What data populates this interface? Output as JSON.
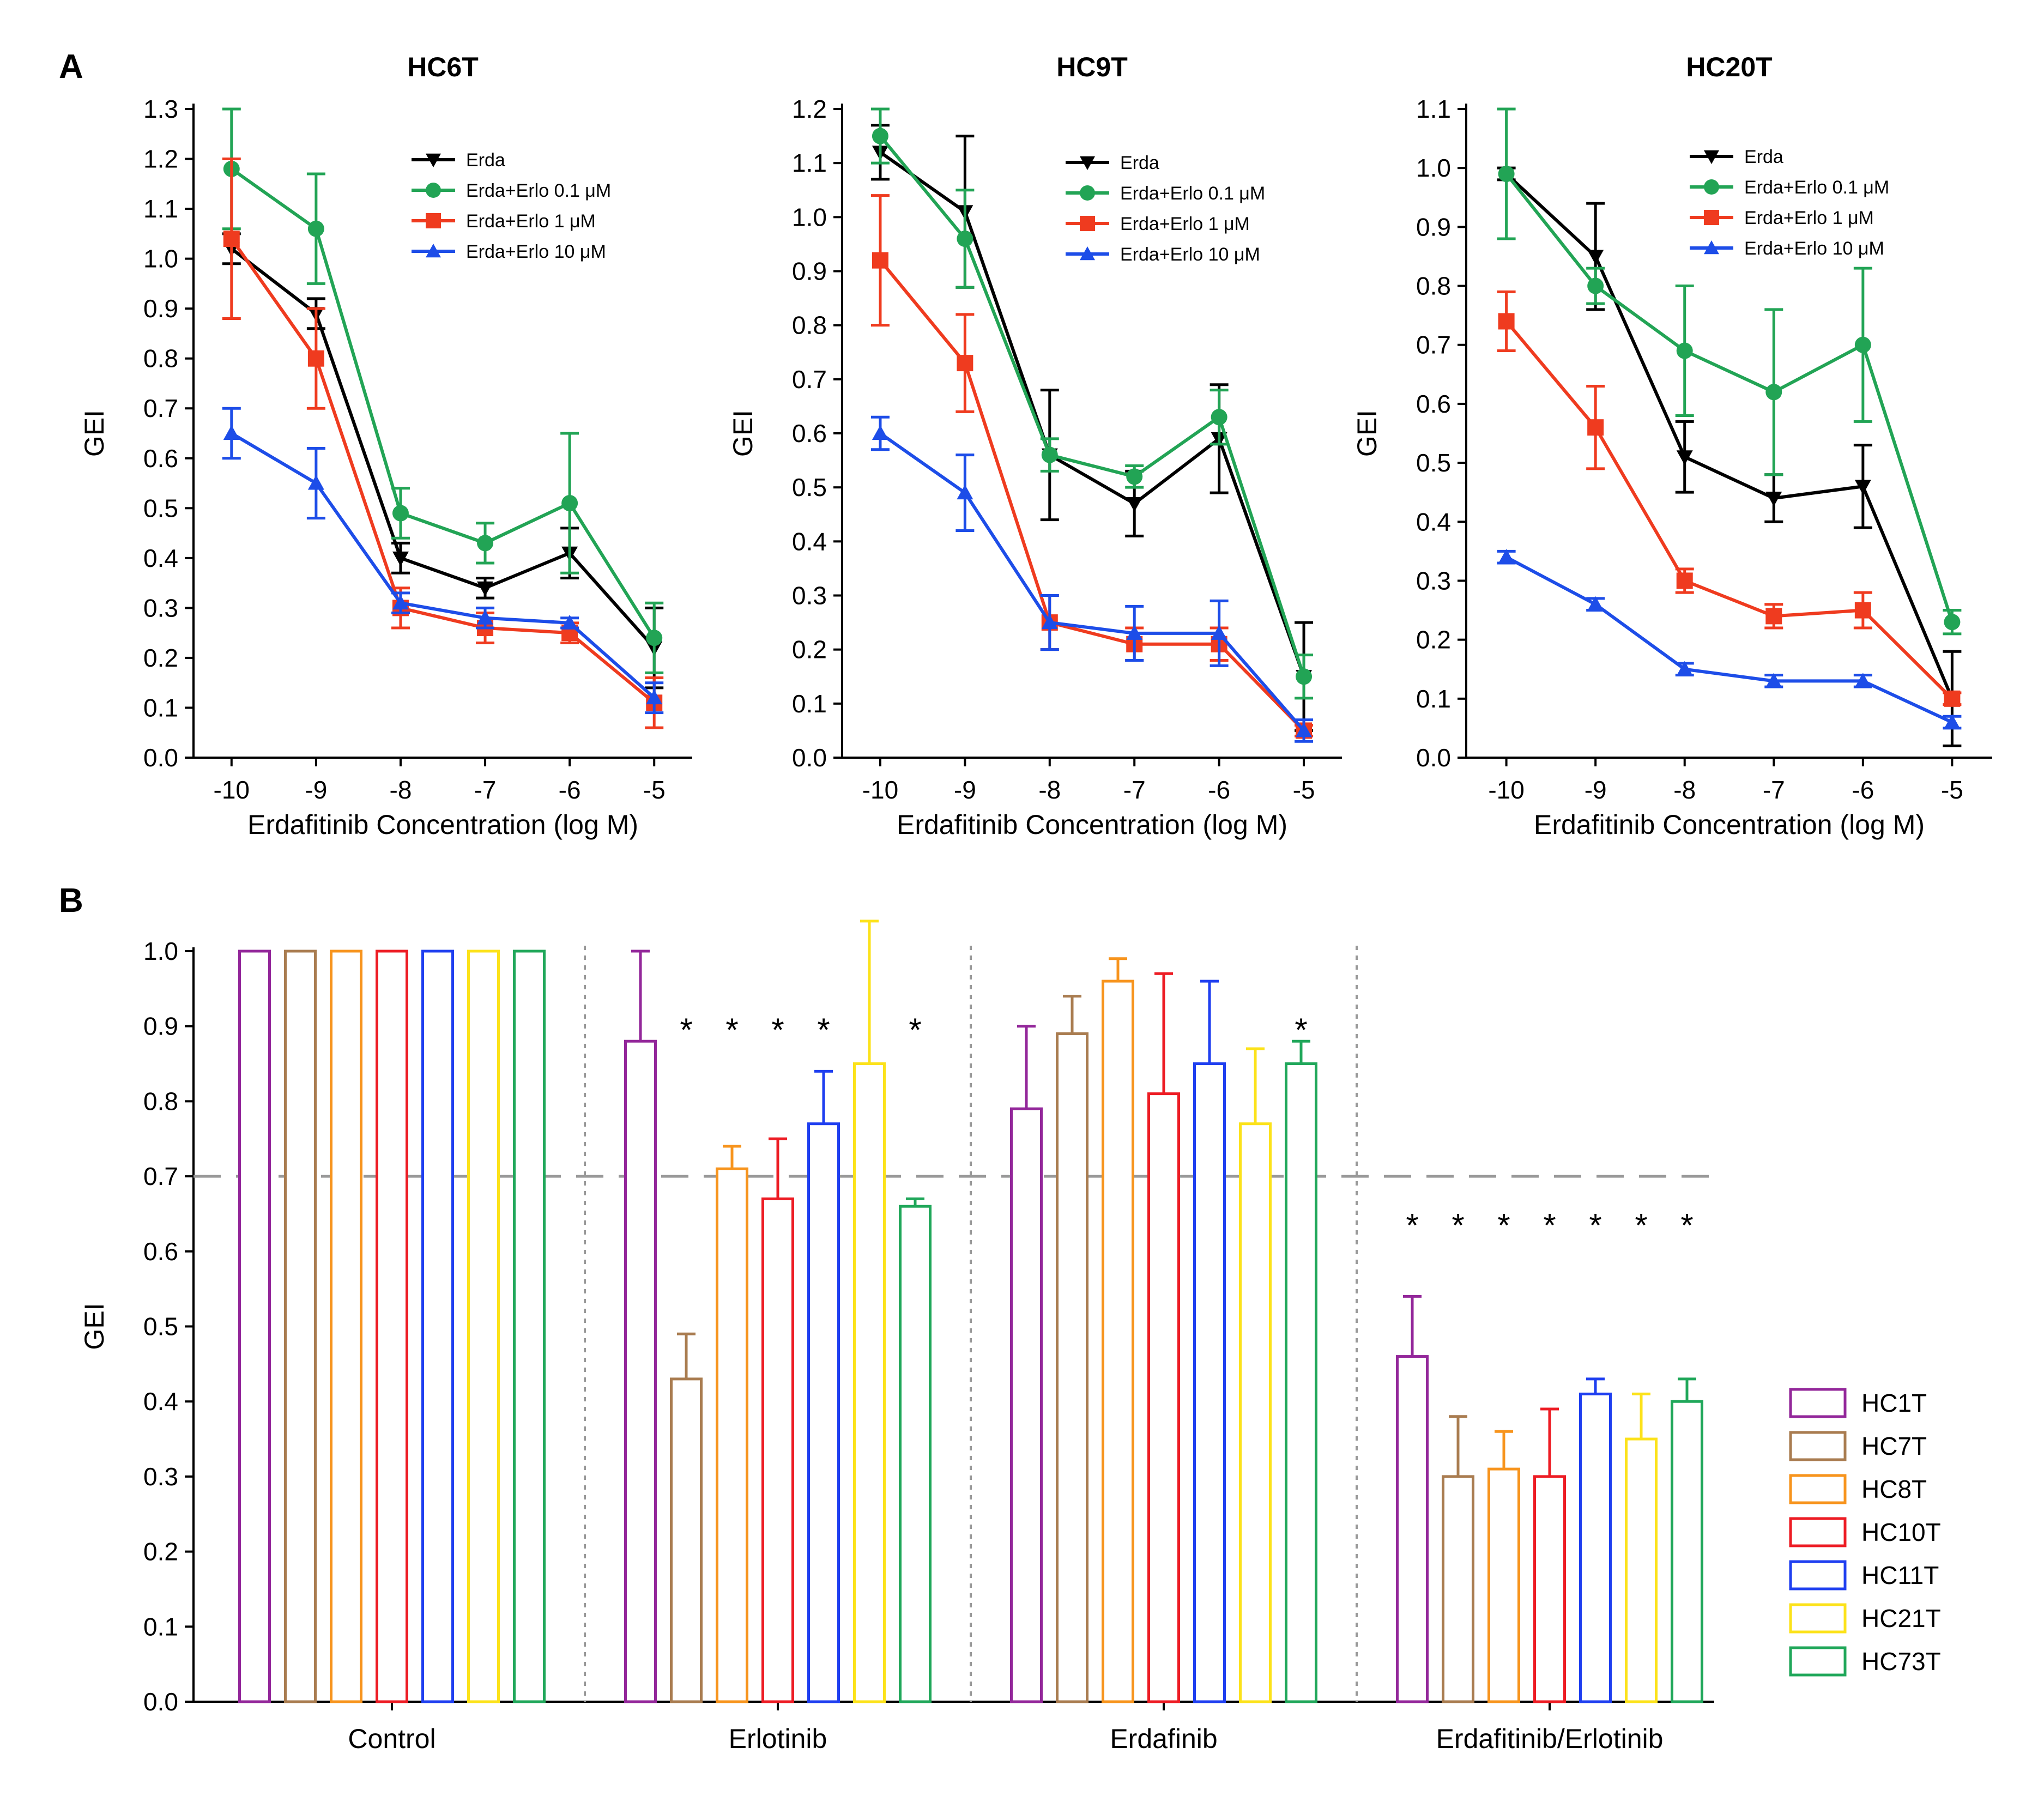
{
  "figure": {
    "panel_a_label": "A",
    "panel_b_label": "B"
  },
  "chart_data": [
    {
      "type": "line",
      "title": "HC6T",
      "xlabel": "Erdafitinib Concentration (log M)",
      "ylabel": "GEI",
      "x": [
        -10,
        -9,
        -8,
        -7,
        -6,
        -5
      ],
      "xlim": [
        -10.45,
        -4.55
      ],
      "ylim": [
        0,
        1.3
      ],
      "y_ticks": [
        "0.0",
        "0.1",
        "0.2",
        "0.3",
        "0.4",
        "0.5",
        "0.6",
        "0.7",
        "0.8",
        "0.9",
        "1.0",
        "1.1",
        "1.2",
        "1.3"
      ],
      "legend_position": "top-right",
      "series": [
        {
          "name": "Erda",
          "legend_label": "Erda",
          "color": "#000000",
          "marker": "triangle-down",
          "values": [
            1.02,
            0.89,
            0.4,
            0.34,
            0.41,
            0.22
          ],
          "errors": [
            0.03,
            0.03,
            0.03,
            0.02,
            0.05,
            0.08
          ]
        },
        {
          "name": "Erda+Erlo 0.1 μM",
          "legend_label": "Erda+Erlo 0.1 μM",
          "color": "#22a455",
          "marker": "circle",
          "values": [
            1.18,
            1.06,
            0.49,
            0.43,
            0.51,
            0.24
          ],
          "errors": [
            0.12,
            0.11,
            0.05,
            0.04,
            0.14,
            0.07
          ]
        },
        {
          "name": "Erda+Erlo 1 μM",
          "legend_label": "Erda+Erlo 1 μM",
          "color": "#ef3b1f",
          "marker": "square",
          "values": [
            1.04,
            0.8,
            0.3,
            0.26,
            0.25,
            0.11
          ],
          "errors": [
            0.16,
            0.1,
            0.04,
            0.03,
            0.02,
            0.05
          ]
        },
        {
          "name": "Erda+Erlo 10 μM",
          "legend_label": "Erda+Erlo 10 μM",
          "color": "#1d4de8",
          "marker": "triangle-up",
          "values": [
            0.65,
            0.55,
            0.31,
            0.28,
            0.27,
            0.12
          ],
          "errors": [
            0.05,
            0.07,
            0.02,
            0.02,
            0.01,
            0.03
          ]
        }
      ]
    },
    {
      "type": "line",
      "title": "HC9T",
      "xlabel": "Erdafitinib Concentration (log M)",
      "ylabel": "GEI",
      "x": [
        -10,
        -9,
        -8,
        -7,
        -6,
        -5
      ],
      "xlim": [
        -10.45,
        -4.55
      ],
      "ylim": [
        0,
        1.2
      ],
      "y_ticks": [
        "0.0",
        "0.1",
        "0.2",
        "0.3",
        "0.4",
        "0.5",
        "0.6",
        "0.7",
        "0.8",
        "0.9",
        "1.0",
        "1.1",
        "1.2"
      ],
      "legend_position": "top-right",
      "series": [
        {
          "name": "Erda",
          "legend_label": "Erda",
          "color": "#000000",
          "marker": "triangle-down",
          "values": [
            1.12,
            1.01,
            0.56,
            0.47,
            0.59,
            0.15
          ],
          "errors": [
            0.05,
            0.14,
            0.12,
            0.06,
            0.1,
            0.1
          ]
        },
        {
          "name": "Erda+Erlo 0.1 μM",
          "legend_label": "Erda+Erlo 0.1 μM",
          "color": "#22a455",
          "marker": "circle",
          "values": [
            1.15,
            0.96,
            0.56,
            0.52,
            0.63,
            0.15
          ],
          "errors": [
            0.05,
            0.09,
            0.03,
            0.02,
            0.05,
            0.04
          ]
        },
        {
          "name": "Erda+Erlo 1 μM",
          "legend_label": "Erda+Erlo 1 μM",
          "color": "#ef3b1f",
          "marker": "square",
          "values": [
            0.92,
            0.73,
            0.25,
            0.21,
            0.21,
            0.05
          ],
          "errors": [
            0.12,
            0.09,
            0.05,
            0.03,
            0.03,
            0.01
          ]
        },
        {
          "name": "Erda+Erlo 10 μM",
          "legend_label": "Erda+Erlo 10 μM",
          "color": "#1d4de8",
          "marker": "triangle-up",
          "values": [
            0.6,
            0.49,
            0.25,
            0.23,
            0.23,
            0.05
          ],
          "errors": [
            0.03,
            0.07,
            0.05,
            0.05,
            0.06,
            0.02
          ]
        }
      ]
    },
    {
      "type": "line",
      "title": "HC20T",
      "xlabel": "Erdafitinib Concentration (log M)",
      "ylabel": "GEI",
      "x": [
        -10,
        -9,
        -8,
        -7,
        -6,
        -5
      ],
      "xlim": [
        -10.45,
        -4.55
      ],
      "ylim": [
        0,
        1.1
      ],
      "y_ticks": [
        "0.0",
        "0.1",
        "0.2",
        "0.3",
        "0.4",
        "0.5",
        "0.6",
        "0.7",
        "0.8",
        "0.9",
        "1.0",
        "1.1"
      ],
      "legend_position": "top-right",
      "series": [
        {
          "name": "Erda",
          "legend_label": "Erda",
          "color": "#000000",
          "marker": "triangle-down",
          "values": [
            0.99,
            0.85,
            0.51,
            0.44,
            0.46,
            0.1
          ],
          "errors": [
            0.01,
            0.09,
            0.06,
            0.04,
            0.07,
            0.08
          ]
        },
        {
          "name": "Erda+Erlo 0.1 μM",
          "legend_label": "Erda+Erlo 0.1 μM",
          "color": "#22a455",
          "marker": "circle",
          "values": [
            0.99,
            0.8,
            0.69,
            0.62,
            0.7,
            0.23
          ],
          "errors": [
            0.11,
            0.03,
            0.11,
            0.14,
            0.13,
            0.02
          ]
        },
        {
          "name": "Erda+Erlo 1 μM",
          "legend_label": "Erda+Erlo 1 μM",
          "color": "#ef3b1f",
          "marker": "square",
          "values": [
            0.74,
            0.56,
            0.3,
            0.24,
            0.25,
            0.1
          ],
          "errors": [
            0.05,
            0.07,
            0.02,
            0.02,
            0.03,
            0.01
          ]
        },
        {
          "name": "Erda+Erlo 10 μM",
          "legend_label": "Erda+Erlo 10 μM",
          "color": "#1d4de8",
          "marker": "triangle-up",
          "values": [
            0.34,
            0.26,
            0.15,
            0.13,
            0.13,
            0.06
          ],
          "errors": [
            0.01,
            0.01,
            0.01,
            0.01,
            0.01,
            0.01
          ]
        }
      ]
    },
    {
      "type": "bar",
      "title": "",
      "xlabel": "",
      "ylabel": "GEI",
      "ylim": [
        0,
        1.0
      ],
      "y_ticks": [
        "0.0",
        "0.1",
        "0.2",
        "0.3",
        "0.4",
        "0.5",
        "0.6",
        "0.7",
        "0.8",
        "0.9",
        "1.0"
      ],
      "threshold": 0.7,
      "significance_marker": "*",
      "categories": [
        "Control",
        "Erlotinib",
        "Erdafinib",
        "Erdafitinib/Erlotinib"
      ],
      "legend_position": "right",
      "series": [
        {
          "name": "HC1T",
          "color": "#93279a",
          "values": [
            1.0,
            0.88,
            0.79,
            0.46
          ],
          "errors": [
            0,
            0.12,
            0.11,
            0.08
          ],
          "significant": [
            false,
            false,
            false,
            true
          ]
        },
        {
          "name": "HC7T",
          "color": "#a97c50",
          "values": [
            1.0,
            0.43,
            0.89,
            0.3
          ],
          "errors": [
            0,
            0.06,
            0.05,
            0.08
          ],
          "significant": [
            false,
            true,
            false,
            true
          ]
        },
        {
          "name": "HC8T",
          "color": "#f7941d",
          "values": [
            1.0,
            0.71,
            0.96,
            0.31
          ],
          "errors": [
            0,
            0.03,
            0.03,
            0.05
          ],
          "significant": [
            false,
            true,
            false,
            true
          ]
        },
        {
          "name": "HC10T",
          "color": "#ed1c24",
          "values": [
            1.0,
            0.67,
            0.81,
            0.3
          ],
          "errors": [
            0,
            0.08,
            0.16,
            0.09
          ],
          "significant": [
            false,
            true,
            false,
            true
          ]
        },
        {
          "name": "HC11T",
          "color": "#1f3ff0",
          "values": [
            1.0,
            0.77,
            0.85,
            0.41
          ],
          "errors": [
            0,
            0.07,
            0.11,
            0.02
          ],
          "significant": [
            false,
            true,
            false,
            true
          ]
        },
        {
          "name": "HC21T",
          "color": "#fce21a",
          "values": [
            1.0,
            0.85,
            0.77,
            0.35
          ],
          "errors": [
            0,
            0.19,
            0.1,
            0.06
          ],
          "significant": [
            false,
            false,
            false,
            true
          ]
        },
        {
          "name": "HC73T",
          "color": "#20a75a",
          "values": [
            1.0,
            0.66,
            0.85,
            0.4
          ],
          "errors": [
            0,
            0.01,
            0.03,
            0.03
          ],
          "significant": [
            false,
            true,
            true,
            true
          ]
        }
      ]
    }
  ]
}
